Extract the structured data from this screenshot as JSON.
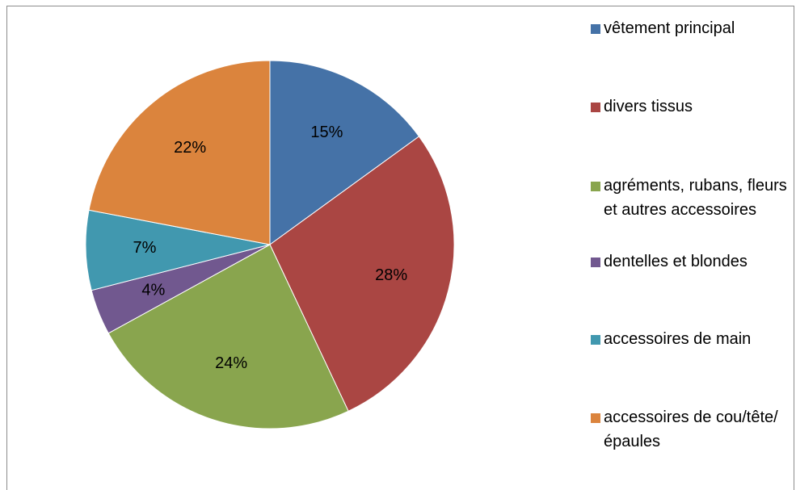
{
  "chart_data": {
    "type": "pie",
    "title": "",
    "legend_position": "right",
    "slices": [
      {
        "label": "vêtement principal",
        "value": 15,
        "value_label": "15%",
        "color": "#4572a7"
      },
      {
        "label": "divers tissus",
        "value": 28,
        "value_label": "28%",
        "color": "#aa4643"
      },
      {
        "label": "agréments, rubans, fleurs et autres accessoires",
        "value": 24,
        "value_label": "24%",
        "color": "#89a54e"
      },
      {
        "label": "dentelles et blondes",
        "value": 4,
        "value_label": "4%",
        "color": "#71588f"
      },
      {
        "label": "accessoires de main",
        "value": 7,
        "value_label": "7%",
        "color": "#4198af"
      },
      {
        "label": "accessoires de cou/tête/épaules",
        "value": 22,
        "value_label": "22%",
        "color": "#db843d"
      }
    ]
  }
}
